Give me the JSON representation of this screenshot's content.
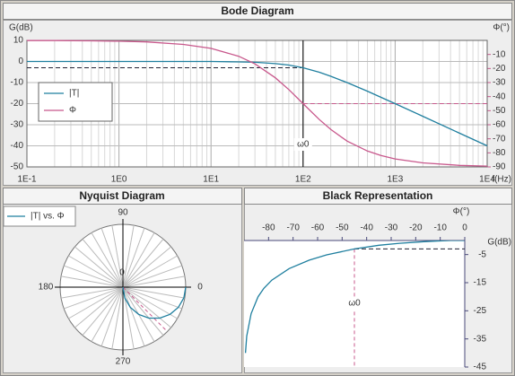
{
  "chart_data": [
    {
      "type": "bode",
      "title": "Bode Diagram",
      "y_label": "G(dB)",
      "y2_label": "Φ(°)",
      "x_label": "f(Hz)",
      "log_x": true,
      "grid": true,
      "minor_grid": true,
      "legend": "left",
      "x": [
        0.1,
        0.2,
        0.5,
        1,
        2,
        5,
        10,
        20,
        30,
        50,
        70,
        100,
        150,
        200,
        300,
        500,
        700,
        1000,
        2000,
        5000,
        10000
      ],
      "series": [
        {
          "name": "|T|",
          "color": "#1f7f9f",
          "values": [
            0,
            0,
            0,
            0,
            0,
            0,
            0,
            -0.2,
            -0.4,
            -1,
            -1.7,
            -3,
            -5.1,
            -7,
            -10,
            -14.1,
            -17,
            -20,
            -26,
            -34,
            -40
          ]
        },
        {
          "name": "Φ",
          "color": "#c8588c",
          "axis": "y2",
          "values": [
            -0.1,
            -0.1,
            -0.3,
            -0.6,
            -1.1,
            -2.9,
            -5.7,
            -11.3,
            -16.7,
            -26.6,
            -35,
            -45,
            -56.3,
            -63.4,
            -71.6,
            -78.7,
            -81.9,
            -84.3,
            -87.1,
            -88.9,
            -89.4
          ]
        }
      ],
      "xlim": [
        0.1,
        10000
      ],
      "xticks": [
        {
          "value": 0.1,
          "label": "1E-1"
        },
        {
          "value": 1,
          "label": "1E0"
        },
        {
          "value": 10,
          "label": "1E1"
        },
        {
          "value": 100,
          "label": "1E2"
        },
        {
          "value": 1000,
          "label": "1E3"
        },
        {
          "value": 10000,
          "label": "1E4"
        }
      ],
      "ylim": [
        -50,
        10
      ],
      "yticks": [
        -50,
        -40,
        -30,
        -20,
        -10,
        0,
        10
      ],
      "y2lim": [
        -90,
        0
      ],
      "y2ticks": [
        -90,
        -80,
        -70,
        -60,
        -50,
        -40,
        -30,
        -20,
        -10
      ],
      "y2_color": "#c8588c",
      "marker": {
        "x": 100,
        "y": -3,
        "y2": -45,
        "label": "ω0"
      }
    },
    {
      "type": "polar",
      "title": "Nyquist Diagram",
      "legend": "upper left",
      "series": [
        {
          "name": "|T| vs. Φ",
          "color": "#1f7f9f",
          "theta": [
            0,
            -10,
            -20,
            -30,
            -40,
            -50,
            -60,
            -70,
            -80,
            -90
          ],
          "r": [
            1,
            0.985,
            0.94,
            0.866,
            0.766,
            0.643,
            0.5,
            0.342,
            0.174,
            0
          ]
        }
      ],
      "rlim": [
        0,
        1
      ],
      "rticks": [
        0
      ],
      "thetaticks": [
        0,
        90,
        180,
        270
      ],
      "theta_grid_step": 10,
      "marker_theta": -45,
      "marker_color": "#c8588c"
    },
    {
      "type": "black",
      "title": "Black Representation",
      "x_label": "Φ(°)",
      "y_label": "G(dB)",
      "x": [
        -0.1,
        -0.1,
        -0.3,
        -0.6,
        -1.1,
        -2.9,
        -5.7,
        -11.3,
        -16.7,
        -26.6,
        -35,
        -45,
        -56.3,
        -63.4,
        -71.6,
        -78.7,
        -81.9,
        -84.3,
        -87.1,
        -88.9,
        -89.4
      ],
      "series": [
        {
          "color": "#1f7f9f",
          "values": [
            0,
            0,
            0,
            0,
            0,
            0,
            0,
            -0.2,
            -0.4,
            -1,
            -1.7,
            -3,
            -5.1,
            -7,
            -10,
            -14.1,
            -17,
            -20,
            -26,
            -34,
            -40
          ]
        }
      ],
      "xlim": [
        -90,
        0
      ],
      "xticks": [
        -80,
        -70,
        -60,
        -50,
        -40,
        -30,
        -20,
        -10,
        0
      ],
      "ylim": [
        -45,
        0
      ],
      "yticks": [
        -5,
        -15,
        -25,
        -35,
        -45
      ],
      "marker": {
        "x": -45,
        "y": -3,
        "label": "ω0"
      },
      "marker_color": "#c8588c"
    }
  ]
}
